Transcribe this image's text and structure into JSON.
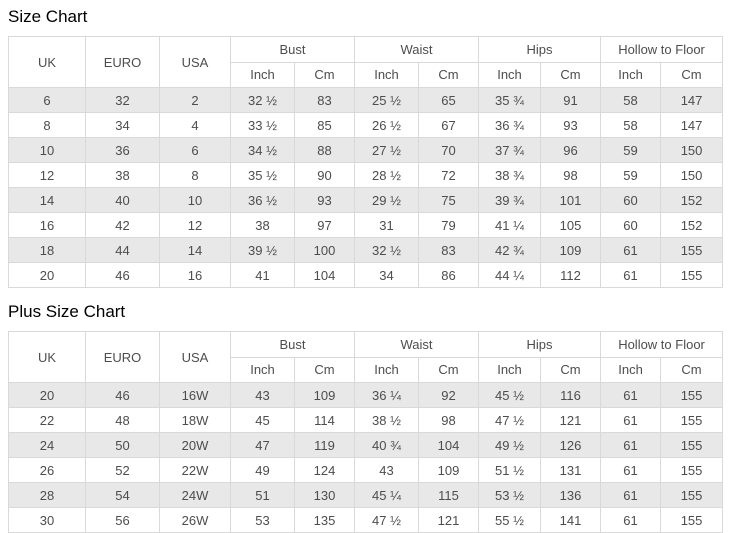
{
  "colors": {
    "stripe": "#e8e8e8",
    "border": "#d9d9d9",
    "text": "#4d4d4d",
    "title": "#000000"
  },
  "page": {
    "tables": [
      {
        "title": "Size Chart",
        "header": {
          "size_cols": [
            "UK",
            "EURO",
            "USA"
          ],
          "measure_groups": [
            "Bust",
            "Waist",
            "Hips",
            "Hollow to Floor"
          ],
          "units": [
            "Inch",
            "Cm"
          ]
        },
        "rows": [
          [
            "6",
            "32",
            "2",
            "32 ½",
            "83",
            "25 ½",
            "65",
            "35 ¾",
            "91",
            "58",
            "147"
          ],
          [
            "8",
            "34",
            "4",
            "33 ½",
            "85",
            "26 ½",
            "67",
            "36 ¾",
            "93",
            "58",
            "147"
          ],
          [
            "10",
            "36",
            "6",
            "34 ½",
            "88",
            "27 ½",
            "70",
            "37 ¾",
            "96",
            "59",
            "150"
          ],
          [
            "12",
            "38",
            "8",
            "35 ½",
            "90",
            "28 ½",
            "72",
            "38 ¾",
            "98",
            "59",
            "150"
          ],
          [
            "14",
            "40",
            "10",
            "36 ½",
            "93",
            "29 ½",
            "75",
            "39 ¾",
            "101",
            "60",
            "152"
          ],
          [
            "16",
            "42",
            "12",
            "38",
            "97",
            "31",
            "79",
            "41 ¼",
            "105",
            "60",
            "152"
          ],
          [
            "18",
            "44",
            "14",
            "39 ½",
            "100",
            "32 ½",
            "83",
            "42 ¾",
            "109",
            "61",
            "155"
          ],
          [
            "20",
            "46",
            "16",
            "41",
            "104",
            "34",
            "86",
            "44 ¼",
            "112",
            "61",
            "155"
          ]
        ]
      },
      {
        "title": "Plus Size Chart",
        "header": {
          "size_cols": [
            "UK",
            "EURO",
            "USA"
          ],
          "measure_groups": [
            "Bust",
            "Waist",
            "Hips",
            "Hollow to Floor"
          ],
          "units": [
            "Inch",
            "Cm"
          ]
        },
        "rows": [
          [
            "20",
            "46",
            "16W",
            "43",
            "109",
            "36 ¼",
            "92",
            "45 ½",
            "116",
            "61",
            "155"
          ],
          [
            "22",
            "48",
            "18W",
            "45",
            "114",
            "38 ½",
            "98",
            "47 ½",
            "121",
            "61",
            "155"
          ],
          [
            "24",
            "50",
            "20W",
            "47",
            "119",
            "40 ¾",
            "104",
            "49 ½",
            "126",
            "61",
            "155"
          ],
          [
            "26",
            "52",
            "22W",
            "49",
            "124",
            "43",
            "109",
            "51 ½",
            "131",
            "61",
            "155"
          ],
          [
            "28",
            "54",
            "24W",
            "51",
            "130",
            "45 ¼",
            "115",
            "53 ½",
            "136",
            "61",
            "155"
          ],
          [
            "30",
            "56",
            "26W",
            "53",
            "135",
            "47 ½",
            "121",
            "55 ½",
            "141",
            "61",
            "155"
          ]
        ]
      }
    ]
  }
}
